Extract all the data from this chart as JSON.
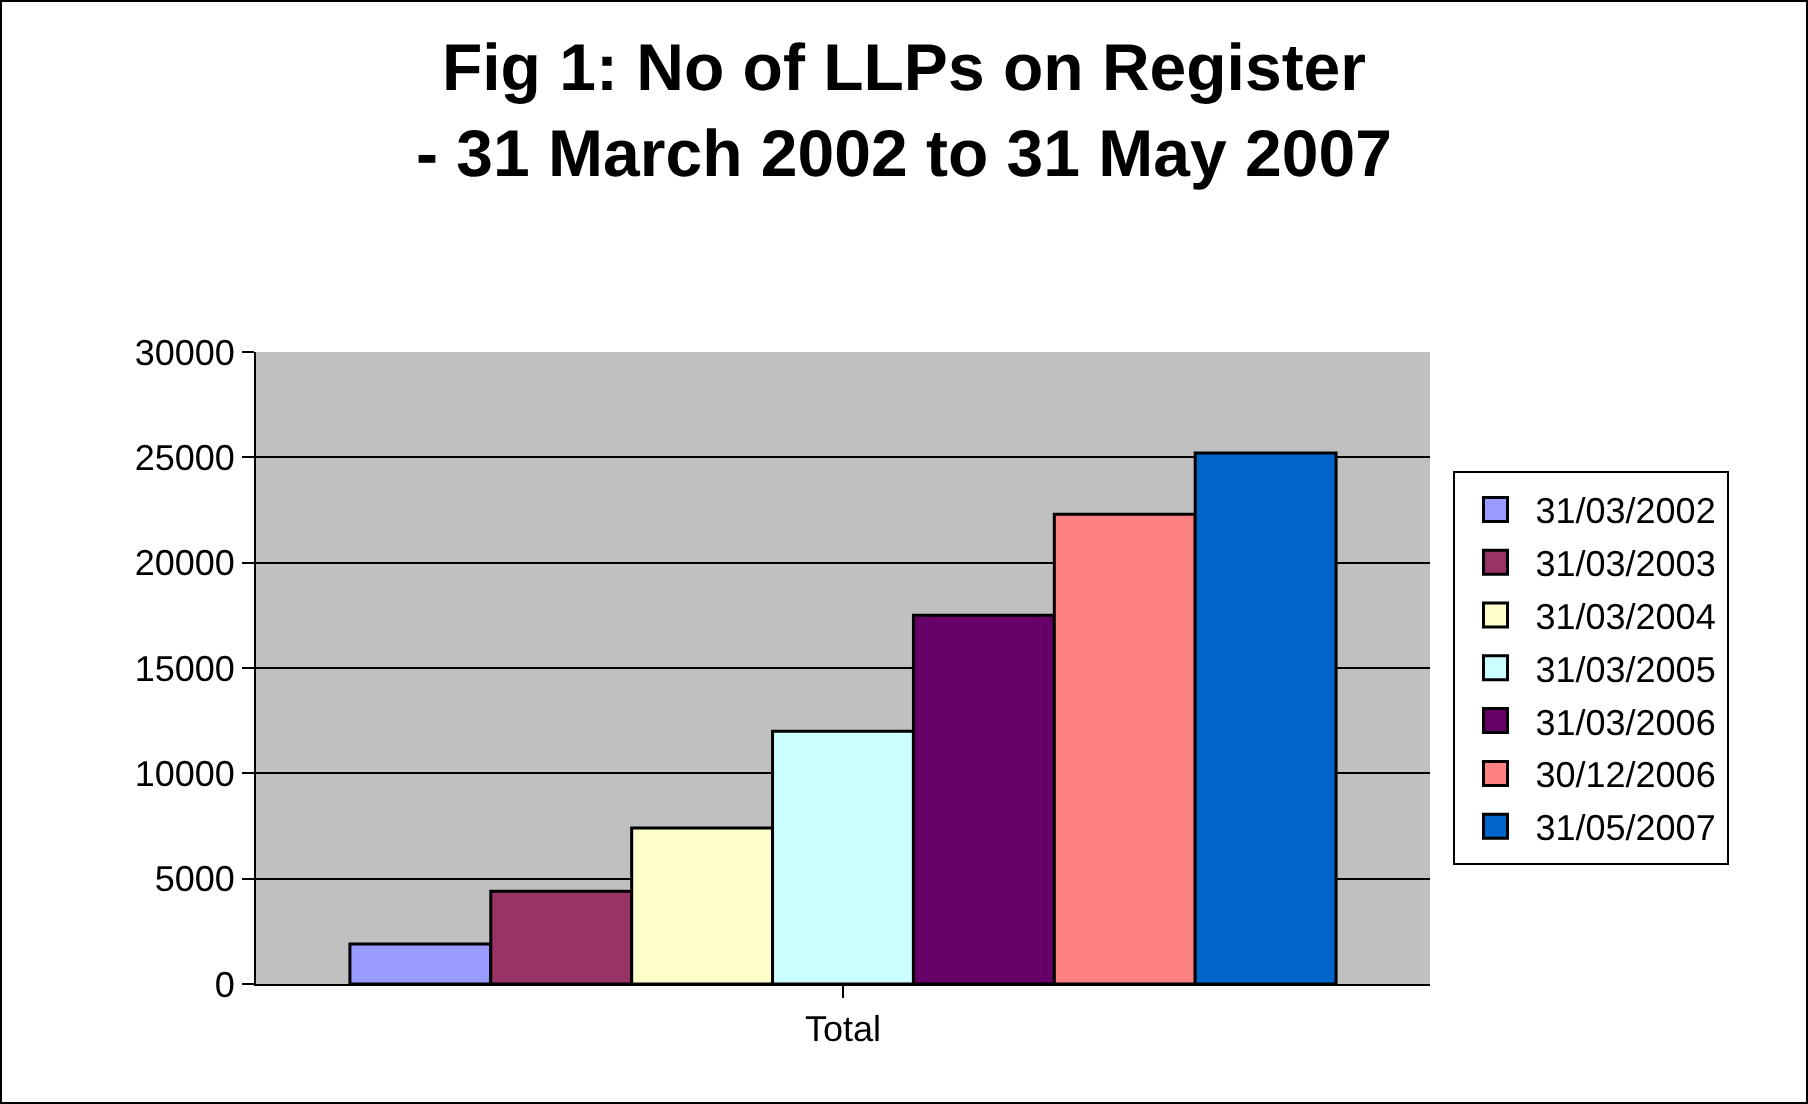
{
  "chart_data": {
    "type": "bar",
    "title": "Fig 1: No of LLPs on Register\n- 31 March 2002 to 31 May 2007",
    "categories": [
      "Total"
    ],
    "series": [
      {
        "name": "31/03/2002",
        "color": "#9999ff",
        "values": [
          1900
        ]
      },
      {
        "name": "31/03/2003",
        "color": "#993366",
        "values": [
          4400
        ]
      },
      {
        "name": "31/03/2004",
        "color": "#ffffcc",
        "values": [
          7400
        ]
      },
      {
        "name": "31/03/2005",
        "color": "#ccffff",
        "values": [
          12000
        ]
      },
      {
        "name": "31/03/2006",
        "color": "#660066",
        "values": [
          17500
        ]
      },
      {
        "name": "30/12/2006",
        "color": "#ff8080",
        "values": [
          22300
        ]
      },
      {
        "name": "31/05/2007",
        "color": "#0066cc",
        "values": [
          25200
        ]
      }
    ],
    "ylim": [
      0,
      30000
    ],
    "yticks": [
      0,
      5000,
      10000,
      15000,
      20000,
      25000,
      30000
    ],
    "grid": "y",
    "legend": "right"
  }
}
